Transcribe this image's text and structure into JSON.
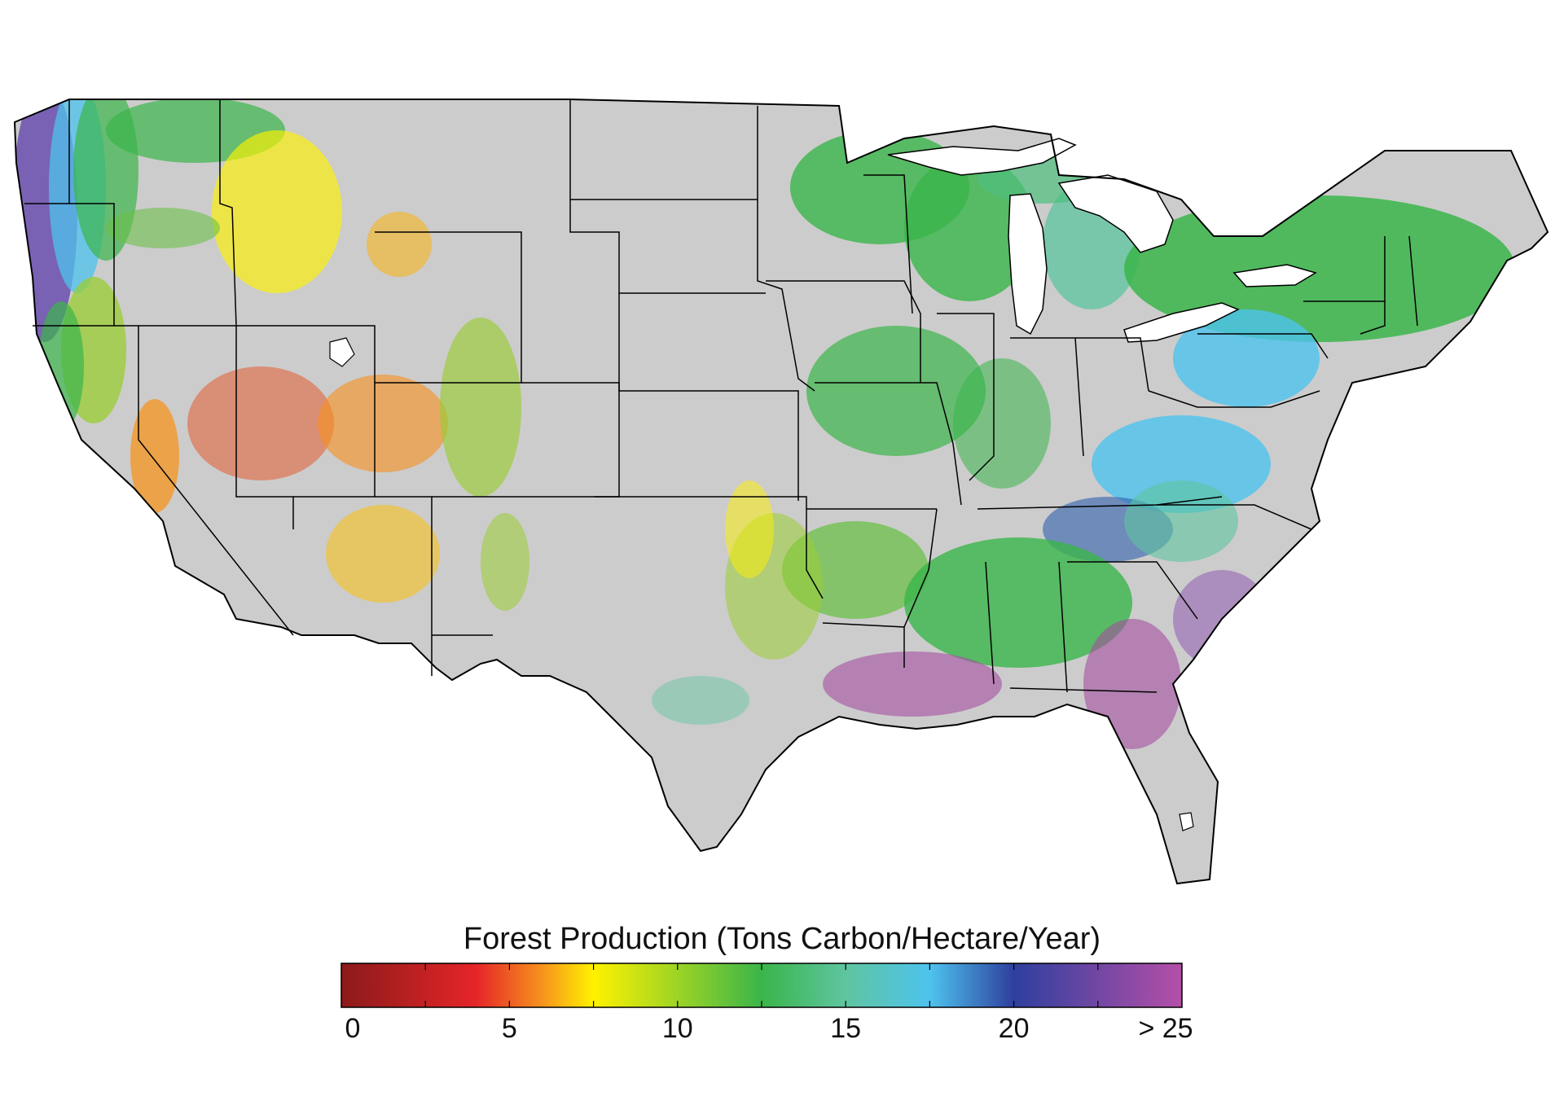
{
  "legend": {
    "title": "Forest Production (Tons Carbon/Hectare/Year)",
    "ticks": [
      "0",
      "5",
      "10",
      "15",
      "20",
      "> 25"
    ],
    "color_stops": [
      {
        "value": 0,
        "color": "#8b1a1a"
      },
      {
        "value": 4,
        "color": "#e52528"
      },
      {
        "value": 6,
        "color": "#f7941d"
      },
      {
        "value": 7.5,
        "color": "#fff200"
      },
      {
        "value": 12.5,
        "color": "#3ab54a"
      },
      {
        "value": 15,
        "color": "#5ec5a0"
      },
      {
        "value": 17.5,
        "color": "#4ec3ee"
      },
      {
        "value": 20,
        "color": "#2e3f9e"
      },
      {
        "value": 25,
        "color": "#b54fa8"
      }
    ]
  },
  "map": {
    "land_color": "#cccccc",
    "water_color": "#ffffff",
    "border_color": "#000000"
  }
}
